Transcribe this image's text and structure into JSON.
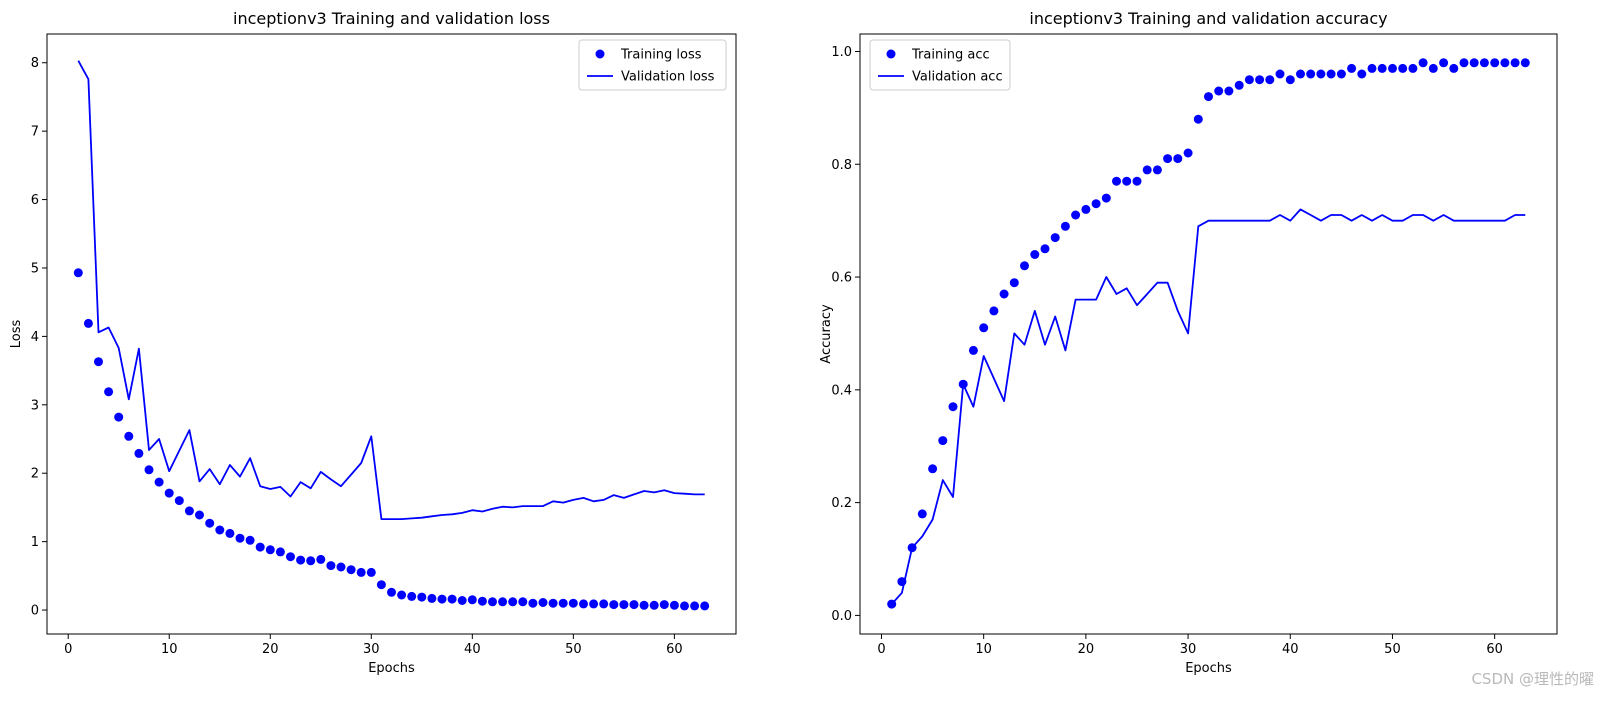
{
  "watermark": "CSDN @理性的曜",
  "colors": {
    "series": "#0000ff",
    "axes": "#000000",
    "legend_border": "#cccccc"
  },
  "chart_data": [
    {
      "type": "line",
      "title": "inceptionv3 Training and validation loss",
      "xlabel": "Epochs",
      "ylabel": "Loss",
      "xlim": [
        -2.1,
        66.1
      ],
      "ylim": [
        -0.35,
        8.42
      ],
      "xticks": [
        0,
        10,
        20,
        30,
        40,
        50,
        60
      ],
      "yticks": [
        0,
        1,
        2,
        3,
        4,
        5,
        6,
        7,
        8
      ],
      "grid": false,
      "legend_position": "upper right",
      "series": [
        {
          "name": "Training loss",
          "style": "markers",
          "x": [
            1,
            2,
            3,
            4,
            5,
            6,
            7,
            8,
            9,
            10,
            11,
            12,
            13,
            14,
            15,
            16,
            17,
            18,
            19,
            20,
            21,
            22,
            23,
            24,
            25,
            26,
            27,
            28,
            29,
            30,
            31,
            32,
            33,
            34,
            35,
            36,
            37,
            38,
            39,
            40,
            41,
            42,
            43,
            44,
            45,
            46,
            47,
            48,
            49,
            50,
            51,
            52,
            53,
            54,
            55,
            56,
            57,
            58,
            59,
            60,
            61,
            62,
            63
          ],
          "values": [
            4.93,
            4.19,
            3.63,
            3.19,
            2.82,
            2.54,
            2.29,
            2.05,
            1.87,
            1.71,
            1.6,
            1.45,
            1.39,
            1.27,
            1.17,
            1.12,
            1.05,
            1.02,
            0.92,
            0.88,
            0.85,
            0.78,
            0.73,
            0.72,
            0.74,
            0.65,
            0.63,
            0.59,
            0.55,
            0.55,
            0.37,
            0.26,
            0.22,
            0.2,
            0.19,
            0.17,
            0.16,
            0.16,
            0.14,
            0.15,
            0.13,
            0.12,
            0.12,
            0.12,
            0.12,
            0.1,
            0.11,
            0.1,
            0.1,
            0.1,
            0.09,
            0.09,
            0.09,
            0.08,
            0.08,
            0.08,
            0.07,
            0.07,
            0.08,
            0.07,
            0.06,
            0.06,
            0.06
          ]
        },
        {
          "name": "Validation loss",
          "style": "line",
          "x": [
            1,
            2,
            3,
            4,
            5,
            6,
            7,
            8,
            9,
            10,
            11,
            12,
            13,
            14,
            15,
            16,
            17,
            18,
            19,
            20,
            21,
            22,
            23,
            24,
            25,
            26,
            27,
            28,
            29,
            30,
            31,
            32,
            33,
            34,
            35,
            36,
            37,
            38,
            39,
            40,
            41,
            42,
            43,
            44,
            45,
            46,
            47,
            48,
            49,
            50,
            51,
            52,
            53,
            54,
            55,
            56,
            57,
            58,
            59,
            60,
            61,
            62,
            63
          ],
          "values": [
            8.03,
            7.76,
            4.06,
            4.13,
            3.83,
            3.08,
            3.82,
            2.34,
            2.5,
            2.03,
            2.33,
            2.63,
            1.88,
            2.06,
            1.84,
            2.12,
            1.95,
            2.22,
            1.81,
            1.77,
            1.8,
            1.66,
            1.87,
            1.78,
            2.02,
            1.91,
            1.81,
            1.98,
            2.15,
            2.54,
            1.33,
            1.33,
            1.33,
            1.34,
            1.35,
            1.37,
            1.39,
            1.4,
            1.42,
            1.46,
            1.44,
            1.48,
            1.51,
            1.5,
            1.52,
            1.52,
            1.52,
            1.59,
            1.57,
            1.61,
            1.64,
            1.59,
            1.61,
            1.68,
            1.64,
            1.69,
            1.74,
            1.72,
            1.75,
            1.71,
            1.7,
            1.69,
            1.69
          ]
        }
      ]
    },
    {
      "type": "line",
      "title": "inceptionv3 Training and validation accuracy",
      "xlabel": "Epochs",
      "ylabel": "Accuracy",
      "xlim": [
        -2.1,
        66.1
      ],
      "ylim": [
        -0.033,
        1.031
      ],
      "xticks": [
        0,
        10,
        20,
        30,
        40,
        50,
        60
      ],
      "yticks": [
        0.0,
        0.2,
        0.4,
        0.6,
        0.8,
        1.0
      ],
      "ytick_labels": [
        "0.0",
        "0.2",
        "0.4",
        "0.6",
        "0.8",
        "1.0"
      ],
      "grid": false,
      "legend_position": "upper left",
      "series": [
        {
          "name": "Training acc",
          "style": "markers",
          "x": [
            1,
            2,
            3,
            4,
            5,
            6,
            7,
            8,
            9,
            10,
            11,
            12,
            13,
            14,
            15,
            16,
            17,
            18,
            19,
            20,
            21,
            22,
            23,
            24,
            25,
            26,
            27,
            28,
            29,
            30,
            31,
            32,
            33,
            34,
            35,
            36,
            37,
            38,
            39,
            40,
            41,
            42,
            43,
            44,
            45,
            46,
            47,
            48,
            49,
            50,
            51,
            52,
            53,
            54,
            55,
            56,
            57,
            58,
            59,
            60,
            61,
            62,
            63
          ],
          "values": [
            0.02,
            0.06,
            0.12,
            0.18,
            0.26,
            0.31,
            0.37,
            0.41,
            0.47,
            0.51,
            0.54,
            0.57,
            0.59,
            0.62,
            0.64,
            0.65,
            0.67,
            0.69,
            0.71,
            0.72,
            0.73,
            0.74,
            0.77,
            0.77,
            0.77,
            0.79,
            0.79,
            0.81,
            0.81,
            0.82,
            0.88,
            0.92,
            0.93,
            0.93,
            0.94,
            0.95,
            0.95,
            0.95,
            0.96,
            0.95,
            0.96,
            0.96,
            0.96,
            0.96,
            0.96,
            0.97,
            0.96,
            0.97,
            0.97,
            0.97,
            0.97,
            0.97,
            0.98,
            0.97,
            0.98,
            0.97,
            0.98,
            0.98,
            0.98,
            0.98,
            0.98,
            0.98,
            0.98
          ]
        },
        {
          "name": "Validation acc",
          "style": "line",
          "x": [
            1,
            2,
            3,
            4,
            5,
            6,
            7,
            8,
            9,
            10,
            11,
            12,
            13,
            14,
            15,
            16,
            17,
            18,
            19,
            20,
            21,
            22,
            23,
            24,
            25,
            26,
            27,
            28,
            29,
            30,
            31,
            32,
            33,
            34,
            35,
            36,
            37,
            38,
            39,
            40,
            41,
            42,
            43,
            44,
            45,
            46,
            47,
            48,
            49,
            50,
            51,
            52,
            53,
            54,
            55,
            56,
            57,
            58,
            59,
            60,
            61,
            62,
            63
          ],
          "values": [
            0.02,
            0.04,
            0.12,
            0.14,
            0.17,
            0.24,
            0.21,
            0.41,
            0.37,
            0.46,
            0.42,
            0.38,
            0.5,
            0.48,
            0.54,
            0.48,
            0.53,
            0.47,
            0.56,
            0.56,
            0.56,
            0.6,
            0.57,
            0.58,
            0.55,
            0.57,
            0.59,
            0.59,
            0.54,
            0.5,
            0.69,
            0.7,
            0.7,
            0.7,
            0.7,
            0.7,
            0.7,
            0.7,
            0.71,
            0.7,
            0.72,
            0.71,
            0.7,
            0.71,
            0.71,
            0.7,
            0.71,
            0.7,
            0.71,
            0.7,
            0.7,
            0.71,
            0.71,
            0.7,
            0.71,
            0.7,
            0.7,
            0.7,
            0.7,
            0.7,
            0.7,
            0.71,
            0.71
          ]
        }
      ]
    }
  ]
}
